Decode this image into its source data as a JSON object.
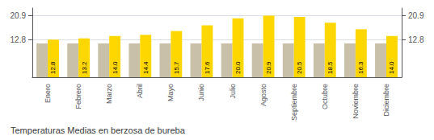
{
  "chart_data": {
    "type": "bar",
    "title": "Temperaturas Medias en berzosa de bureba",
    "categories": [
      "Enero",
      "Febrero",
      "Marzo",
      "Abril",
      "Mayo",
      "Junio",
      "Julio",
      "Agosto",
      "Septiembre",
      "Octubre",
      "Noviembre",
      "Diciembre"
    ],
    "series": [
      {
        "color": "#C8C0A8",
        "values": [
          11.5,
          11.5,
          11.5,
          11.5,
          11.5,
          11.5,
          11.5,
          11.5,
          11.5,
          11.5,
          11.5,
          11.5
        ]
      },
      {
        "color": "#FFD700",
        "values": [
          12.8,
          13.2,
          14.0,
          14.4,
          15.7,
          17.6,
          20.0,
          20.9,
          20.5,
          18.5,
          16.3,
          14.0
        ],
        "data_labels": true,
        "value_labels": [
          "12.8",
          "13.2",
          "14.0",
          "14.4",
          "15.7",
          "17.6",
          "20.0",
          "20.9",
          "20.5",
          "18.5",
          "16.3",
          "14.0"
        ]
      }
    ],
    "ylim": [
      0.0,
      23.5
    ],
    "yticks": [
      12.8,
      20.9
    ],
    "y2lim": [
      0.0,
      23.5
    ],
    "y2ticks": [
      12.8,
      20.9
    ],
    "grid": true
  }
}
